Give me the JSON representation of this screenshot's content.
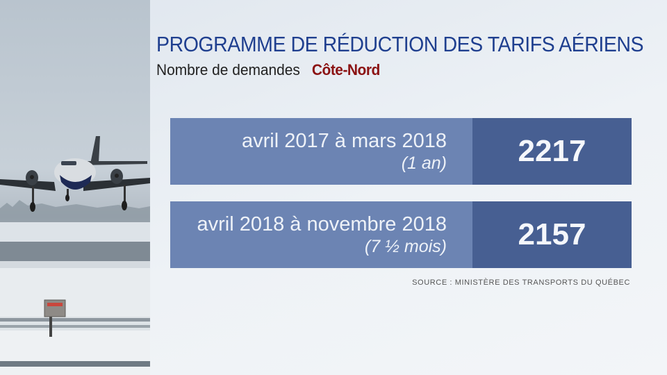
{
  "header": {
    "title": "PROGRAMME DE RÉDUCTION DES TARIFS AÉRIENS",
    "subtitle": "Nombre de demandes",
    "region": "Côte-Nord"
  },
  "rows": [
    {
      "period": "avril 2017 à mars 2018",
      "duration": "(1 an)",
      "value": "2217"
    },
    {
      "period": "avril 2018 à novembre 2018",
      "duration": "(7 ½ mois)",
      "value": "2157"
    }
  ],
  "source": "SOURCE : MINISTÈRE DES TRANSPORTS DU QUÉBEC",
  "colors": {
    "title": "#1f3f8f",
    "region": "#8b1212",
    "period_box": "#6c84b3",
    "value_box": "#475f92"
  }
}
